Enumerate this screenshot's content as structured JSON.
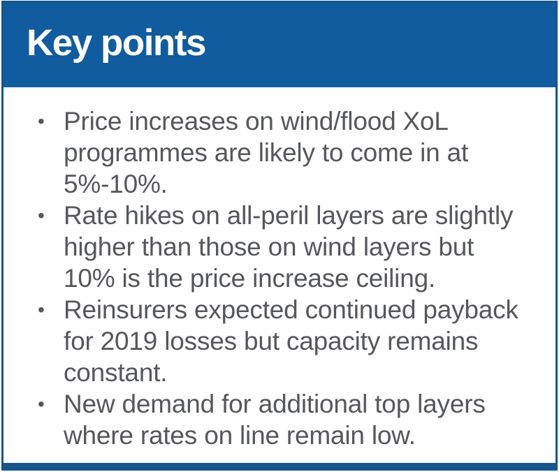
{
  "panel": {
    "title": "Key points",
    "bullet_char": "•",
    "bullets": [
      {
        "text": "Price increases on wind/flood XoL\nprogrammes are likely to come in at\n5%-10%."
      },
      {
        "text": "Rate hikes on all-peril layers are slightly\nhigher than those on wind layers but\n10% is the price increase ceiling."
      },
      {
        "text": "Reinsurers expected continued payback\nfor 2019 losses but capacity remains\nconstant."
      },
      {
        "text": "New demand for additional top layers\nwhere rates on line remain low."
      }
    ]
  },
  "icons": {
    "bullet": "bullet-dot-icon"
  },
  "colors": {
    "header_bg": "#115c9e",
    "border_color": "#175489",
    "body_text": "#56575b",
    "title_text": "#ffffff",
    "page_bg": "#ffffff"
  }
}
